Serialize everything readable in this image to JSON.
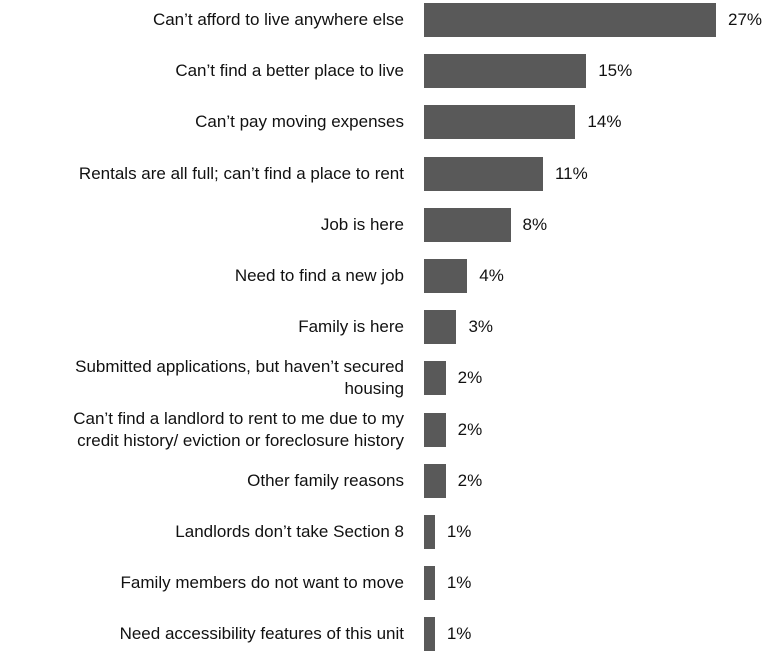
{
  "chart_data": {
    "type": "bar",
    "orientation": "horizontal",
    "categories": [
      "Can’t afford to live anywhere else",
      "Can’t find a better place to live",
      "Can’t pay moving expenses",
      "Rentals are all full; can’t find a place to rent",
      "Job is here",
      "Need to find a new job",
      "Family is here",
      "Submitted applications, but haven’t secured\nhousing",
      "Can’t find a landlord to rent to me due to my\ncredit history/ eviction or foreclosure history",
      "Other family reasons",
      "Landlords don’t take Section 8",
      "Family members do not want to move",
      "Need accessibility features of this unit"
    ],
    "values": [
      27,
      15,
      14,
      11,
      8,
      4,
      3,
      2,
      2,
      2,
      1,
      1,
      1
    ],
    "value_labels": [
      "27%",
      "15%",
      "14%",
      "11%",
      "8%",
      "4%",
      "3%",
      "2%",
      "2%",
      "2%",
      "1%",
      "1%",
      "1%"
    ],
    "xlim": [
      0,
      27
    ],
    "grid": false,
    "legend": "none",
    "colors": {
      "bar": "#595959",
      "text": "#111111"
    }
  }
}
